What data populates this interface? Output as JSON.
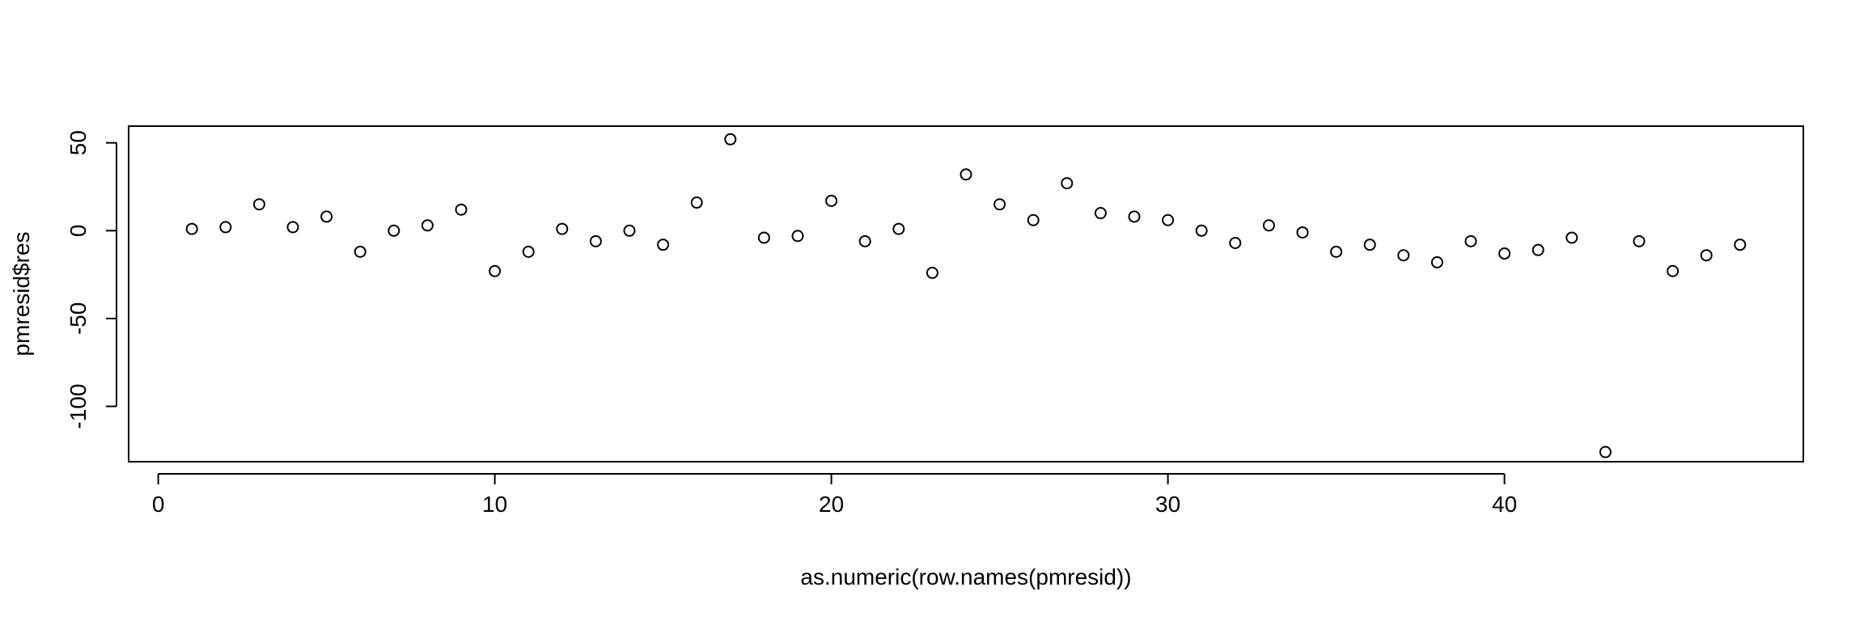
{
  "chart_data": {
    "type": "scatter",
    "title": "",
    "xlabel": "as.numeric(row.names(pmresid))",
    "ylabel": "pmresid$res",
    "xlim": [
      -0.88,
      48.88
    ],
    "ylim": [
      -131.5,
      59.5
    ],
    "x_ticks": [
      0,
      10,
      20,
      30,
      40
    ],
    "y_ticks": [
      50,
      0,
      -50,
      -100
    ],
    "grid": false,
    "legend": "none",
    "marker": "open-circle",
    "colors": {
      "point": "#000000",
      "axis": "#000000",
      "background": "#ffffff"
    },
    "series": [
      {
        "x": [
          1,
          2,
          3,
          4,
          5,
          6,
          7,
          8,
          9,
          10,
          11,
          12,
          13,
          14,
          15,
          16,
          17,
          18,
          19,
          20,
          21,
          22,
          23,
          24,
          25,
          26,
          27,
          28,
          29,
          30,
          31,
          32,
          33,
          34,
          35,
          36,
          37,
          38,
          39,
          40,
          41,
          42,
          43,
          44,
          45,
          46,
          47
        ],
        "y": [
          1,
          2,
          15,
          2,
          8,
          -12,
          0,
          3,
          12,
          -23,
          -12,
          1,
          -6,
          0,
          -8,
          16,
          52,
          -4,
          -3,
          17,
          -6,
          1,
          -24,
          32,
          15,
          6,
          27,
          10,
          8,
          6,
          0,
          -7,
          3,
          -1,
          -12,
          -8,
          -14,
          -18,
          -6,
          -13,
          -11,
          -4,
          -126,
          -6,
          -23,
          -14,
          -8
        ]
      }
    ]
  }
}
